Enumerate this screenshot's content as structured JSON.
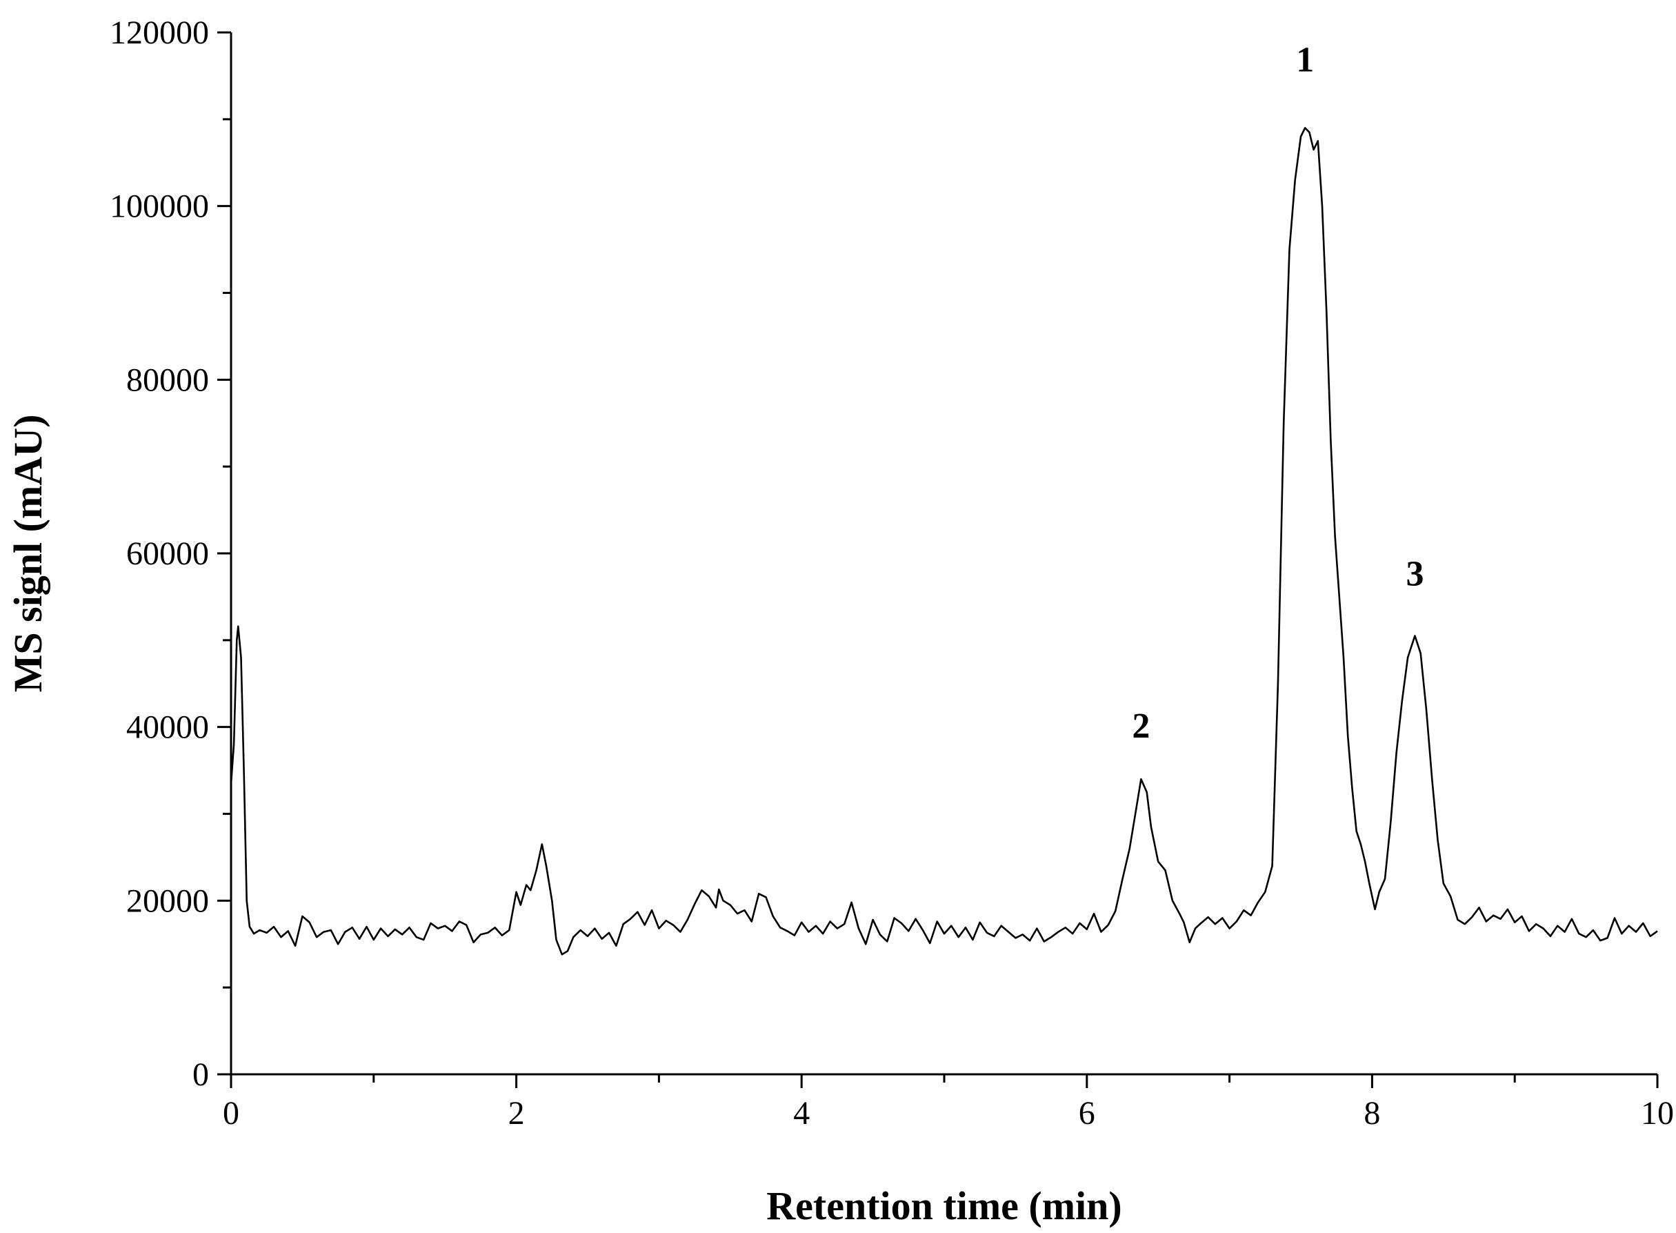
{
  "chart_data": {
    "type": "line",
    "title": "",
    "xlabel": "Retention time (min)",
    "ylabel": "MS signl (mAU)",
    "xlim": [
      0,
      10
    ],
    "ylim": [
      0,
      120000
    ],
    "x_ticks": [
      0,
      2,
      4,
      6,
      8,
      10
    ],
    "x_minor_step": 1,
    "y_ticks": [
      0,
      20000,
      40000,
      60000,
      80000,
      100000,
      120000
    ],
    "y_minor_step": 10000,
    "grid": false,
    "line_color": "#000000",
    "series": [
      {
        "points": [
          [
            0.0,
            33500
          ],
          [
            0.02,
            38000
          ],
          [
            0.04,
            50000
          ],
          [
            0.05,
            51600
          ],
          [
            0.07,
            48000
          ],
          [
            0.09,
            35000
          ],
          [
            0.11,
            20000
          ],
          [
            0.13,
            17000
          ],
          [
            0.16,
            16200
          ],
          [
            0.2,
            16600
          ],
          [
            0.25,
            16300
          ],
          [
            0.3,
            17000
          ],
          [
            0.35,
            15800
          ],
          [
            0.4,
            16500
          ],
          [
            0.45,
            14800
          ],
          [
            0.5,
            18200
          ],
          [
            0.55,
            17500
          ],
          [
            0.6,
            15800
          ],
          [
            0.65,
            16400
          ],
          [
            0.7,
            16600
          ],
          [
            0.75,
            15000
          ],
          [
            0.8,
            16400
          ],
          [
            0.85,
            16900
          ],
          [
            0.9,
            15600
          ],
          [
            0.95,
            17000
          ],
          [
            1.0,
            15500
          ],
          [
            1.05,
            16800
          ],
          [
            1.1,
            15900
          ],
          [
            1.15,
            16700
          ],
          [
            1.2,
            16100
          ],
          [
            1.25,
            16900
          ],
          [
            1.3,
            15800
          ],
          [
            1.35,
            15500
          ],
          [
            1.4,
            17400
          ],
          [
            1.45,
            16800
          ],
          [
            1.5,
            17100
          ],
          [
            1.55,
            16500
          ],
          [
            1.6,
            17600
          ],
          [
            1.65,
            17200
          ],
          [
            1.7,
            15200
          ],
          [
            1.75,
            16100
          ],
          [
            1.8,
            16300
          ],
          [
            1.85,
            16900
          ],
          [
            1.9,
            16000
          ],
          [
            1.95,
            16600
          ],
          [
            2.0,
            21000
          ],
          [
            2.03,
            19500
          ],
          [
            2.07,
            21800
          ],
          [
            2.1,
            21200
          ],
          [
            2.14,
            23500
          ],
          [
            2.18,
            26500
          ],
          [
            2.21,
            24000
          ],
          [
            2.25,
            20000
          ],
          [
            2.28,
            15500
          ],
          [
            2.32,
            13800
          ],
          [
            2.36,
            14200
          ],
          [
            2.4,
            15800
          ],
          [
            2.45,
            16600
          ],
          [
            2.5,
            15900
          ],
          [
            2.55,
            16800
          ],
          [
            2.6,
            15600
          ],
          [
            2.65,
            16300
          ],
          [
            2.7,
            14800
          ],
          [
            2.75,
            17300
          ],
          [
            2.8,
            17900
          ],
          [
            2.85,
            18700
          ],
          [
            2.9,
            17200
          ],
          [
            2.95,
            18900
          ],
          [
            3.0,
            16800
          ],
          [
            3.05,
            17700
          ],
          [
            3.1,
            17200
          ],
          [
            3.15,
            16400
          ],
          [
            3.2,
            17800
          ],
          [
            3.25,
            19600
          ],
          [
            3.3,
            21200
          ],
          [
            3.35,
            20500
          ],
          [
            3.4,
            19200
          ],
          [
            3.42,
            21300
          ],
          [
            3.45,
            20000
          ],
          [
            3.5,
            19500
          ],
          [
            3.55,
            18500
          ],
          [
            3.6,
            18900
          ],
          [
            3.65,
            17600
          ],
          [
            3.7,
            20800
          ],
          [
            3.75,
            20400
          ],
          [
            3.8,
            18200
          ],
          [
            3.85,
            16900
          ],
          [
            3.9,
            16500
          ],
          [
            3.95,
            16000
          ],
          [
            4.0,
            17500
          ],
          [
            4.05,
            16400
          ],
          [
            4.1,
            17100
          ],
          [
            4.15,
            16200
          ],
          [
            4.2,
            17600
          ],
          [
            4.25,
            16800
          ],
          [
            4.3,
            17300
          ],
          [
            4.35,
            19800
          ],
          [
            4.4,
            16800
          ],
          [
            4.45,
            15000
          ],
          [
            4.5,
            17800
          ],
          [
            4.55,
            16100
          ],
          [
            4.6,
            15300
          ],
          [
            4.65,
            18000
          ],
          [
            4.7,
            17400
          ],
          [
            4.75,
            16500
          ],
          [
            4.8,
            17900
          ],
          [
            4.85,
            16600
          ],
          [
            4.9,
            15100
          ],
          [
            4.95,
            17600
          ],
          [
            5.0,
            16200
          ],
          [
            5.05,
            17100
          ],
          [
            5.1,
            15800
          ],
          [
            5.15,
            16900
          ],
          [
            5.2,
            15500
          ],
          [
            5.25,
            17500
          ],
          [
            5.3,
            16300
          ],
          [
            5.35,
            15900
          ],
          [
            5.4,
            17100
          ],
          [
            5.45,
            16400
          ],
          [
            5.5,
            15700
          ],
          [
            5.55,
            16100
          ],
          [
            5.6,
            15400
          ],
          [
            5.65,
            16800
          ],
          [
            5.7,
            15300
          ],
          [
            5.75,
            15800
          ],
          [
            5.8,
            16400
          ],
          [
            5.85,
            16900
          ],
          [
            5.9,
            16200
          ],
          [
            5.95,
            17400
          ],
          [
            6.0,
            16700
          ],
          [
            6.05,
            18500
          ],
          [
            6.1,
            16400
          ],
          [
            6.15,
            17200
          ],
          [
            6.2,
            18800
          ],
          [
            6.25,
            22500
          ],
          [
            6.3,
            26000
          ],
          [
            6.35,
            31000
          ],
          [
            6.38,
            34000
          ],
          [
            6.42,
            32500
          ],
          [
            6.45,
            28500
          ],
          [
            6.5,
            24500
          ],
          [
            6.55,
            23500
          ],
          [
            6.6,
            20000
          ],
          [
            6.65,
            18500
          ],
          [
            6.68,
            17500
          ],
          [
            6.72,
            15200
          ],
          [
            6.76,
            16800
          ],
          [
            6.8,
            17400
          ],
          [
            6.85,
            18100
          ],
          [
            6.9,
            17300
          ],
          [
            6.95,
            18000
          ],
          [
            7.0,
            16800
          ],
          [
            7.05,
            17600
          ],
          [
            7.1,
            18900
          ],
          [
            7.15,
            18300
          ],
          [
            7.2,
            19800
          ],
          [
            7.25,
            21000
          ],
          [
            7.3,
            24000
          ],
          [
            7.34,
            45000
          ],
          [
            7.38,
            75000
          ],
          [
            7.42,
            95000
          ],
          [
            7.46,
            103000
          ],
          [
            7.5,
            108000
          ],
          [
            7.53,
            109000
          ],
          [
            7.56,
            108500
          ],
          [
            7.59,
            106500
          ],
          [
            7.62,
            107500
          ],
          [
            7.65,
            100000
          ],
          [
            7.68,
            88000
          ],
          [
            7.71,
            73000
          ],
          [
            7.74,
            62000
          ],
          [
            7.77,
            55000
          ],
          [
            7.8,
            48000
          ],
          [
            7.83,
            39000
          ],
          [
            7.86,
            33000
          ],
          [
            7.89,
            28000
          ],
          [
            7.92,
            26500
          ],
          [
            7.95,
            24500
          ],
          [
            7.98,
            22000
          ],
          [
            8.02,
            19000
          ],
          [
            8.05,
            21000
          ],
          [
            8.09,
            22500
          ],
          [
            8.13,
            29000
          ],
          [
            8.17,
            37000
          ],
          [
            8.21,
            43000
          ],
          [
            8.25,
            48000
          ],
          [
            8.3,
            50500
          ],
          [
            8.34,
            48500
          ],
          [
            8.38,
            42000
          ],
          [
            8.42,
            34000
          ],
          [
            8.46,
            27000
          ],
          [
            8.5,
            22000
          ],
          [
            8.55,
            20500
          ],
          [
            8.6,
            17800
          ],
          [
            8.65,
            17300
          ],
          [
            8.7,
            18100
          ],
          [
            8.75,
            19200
          ],
          [
            8.8,
            17600
          ],
          [
            8.85,
            18300
          ],
          [
            8.9,
            17900
          ],
          [
            8.95,
            19000
          ],
          [
            9.0,
            17500
          ],
          [
            9.05,
            18200
          ],
          [
            9.1,
            16500
          ],
          [
            9.15,
            17300
          ],
          [
            9.2,
            16800
          ],
          [
            9.25,
            15900
          ],
          [
            9.3,
            17100
          ],
          [
            9.35,
            16400
          ],
          [
            9.4,
            17900
          ],
          [
            9.45,
            16200
          ],
          [
            9.5,
            15800
          ],
          [
            9.55,
            16600
          ],
          [
            9.6,
            15400
          ],
          [
            9.65,
            15700
          ],
          [
            9.7,
            18000
          ],
          [
            9.75,
            16200
          ],
          [
            9.8,
            17100
          ],
          [
            9.85,
            16400
          ],
          [
            9.9,
            17400
          ],
          [
            9.95,
            15900
          ],
          [
            10.0,
            16500
          ]
        ]
      }
    ],
    "annotations": [
      {
        "text": "1",
        "x": 7.53,
        "y": 115500
      },
      {
        "text": "2",
        "x": 6.38,
        "y": 38800
      },
      {
        "text": "3",
        "x": 8.3,
        "y": 56300
      }
    ]
  }
}
